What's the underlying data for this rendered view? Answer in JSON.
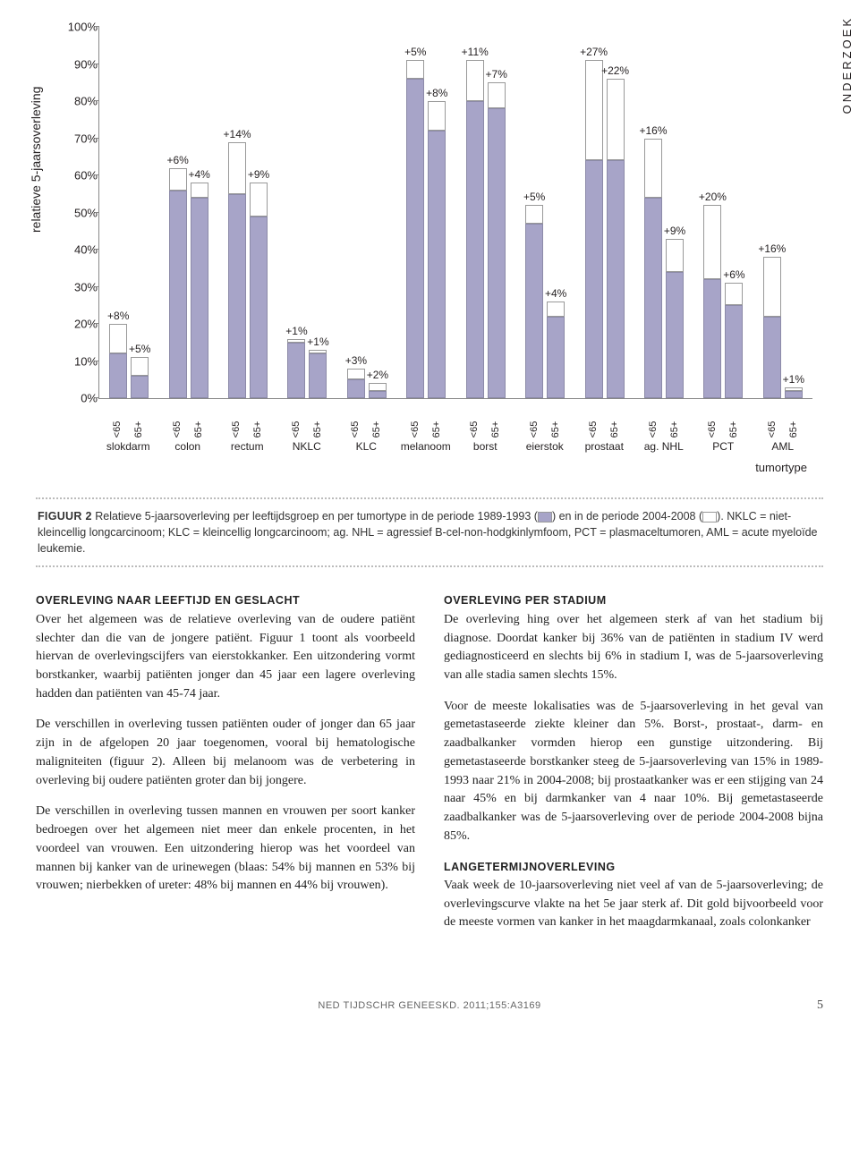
{
  "sidetab": "ONDERZOEK",
  "chart": {
    "type": "bar",
    "ylabel": "relatieve 5-jaarsoverleving",
    "ylim": [
      0,
      100
    ],
    "ytick_step": 10,
    "bar_fill": "#a7a4c8",
    "bar_stroke": "#8c8aa8",
    "outline_fill": "#ffffff",
    "outline_stroke": "#999999",
    "xaxis_caption": "tumortype",
    "sublabels": [
      "<65",
      "65+"
    ],
    "groups": [
      {
        "name": "slokdarm",
        "bars": [
          {
            "old": 12,
            "delta": 8
          },
          {
            "old": 6,
            "delta": 5
          }
        ]
      },
      {
        "name": "colon",
        "bars": [
          {
            "old": 56,
            "delta": 6
          },
          {
            "old": 54,
            "delta": 4
          }
        ]
      },
      {
        "name": "rectum",
        "bars": [
          {
            "old": 55,
            "delta": 14
          },
          {
            "old": 49,
            "delta": 9
          }
        ]
      },
      {
        "name": "NKLC",
        "bars": [
          {
            "old": 15,
            "delta": 1
          },
          {
            "old": 12,
            "delta": 1
          }
        ]
      },
      {
        "name": "KLC",
        "bars": [
          {
            "old": 5,
            "delta": 3
          },
          {
            "old": 2,
            "delta": 2
          }
        ]
      },
      {
        "name": "melanoom",
        "bars": [
          {
            "old": 86,
            "delta": 5
          },
          {
            "old": 72,
            "delta": 8
          }
        ]
      },
      {
        "name": "borst",
        "bars": [
          {
            "old": 80,
            "delta": 11
          },
          {
            "old": 78,
            "delta": 7
          }
        ]
      },
      {
        "name": "eierstok",
        "bars": [
          {
            "old": 47,
            "delta": 5
          },
          {
            "old": 22,
            "delta": 4
          }
        ]
      },
      {
        "name": "prostaat",
        "bars": [
          {
            "old": 64,
            "delta": 27
          },
          {
            "old": 64,
            "delta": 22
          }
        ]
      },
      {
        "name": "ag. NHL",
        "bars": [
          {
            "old": 54,
            "delta": 16
          },
          {
            "old": 34,
            "delta": 9
          }
        ]
      },
      {
        "name": "PCT",
        "bars": [
          {
            "old": 32,
            "delta": 20
          },
          {
            "old": 25,
            "delta": 6
          }
        ]
      },
      {
        "name": "AML",
        "bars": [
          {
            "old": 22,
            "delta": 16
          },
          {
            "old": 2,
            "delta": 1
          }
        ]
      }
    ]
  },
  "caption": {
    "lead": "FIGUUR 2",
    "text1": " Relatieve 5-jaarsoverleving per leeftijdsgroep en per tumortype in de periode 1989-1993 (",
    "text2": ") en in de periode 2004-2008 (",
    "text3": "). NKLC = niet-kleincellig longcarcinoom; KLC = kleincellig longcarcinoom; ag. NHL = agressief B-cel-non-hodgkinlymfoom, PCT = plasmaceltumoren, AML = acute myeloïde leukemie."
  },
  "article": {
    "h1": "OVERLEVING NAAR LEEFTIJD EN GESLACHT",
    "p1": "Over het algemeen was de relatieve overleving van de oudere patiënt slechter dan die van de jongere patiënt. Figuur 1 toont als voorbeeld hiervan de overlevingscijfers van eierstokkanker. Een uitzondering vormt borstkanker, waarbij patiënten jonger dan 45 jaar een lagere overleving hadden dan patiënten van 45-74 jaar.",
    "p2": "De verschillen in overleving tussen patiënten ouder of jonger dan 65 jaar zijn in de afgelopen 20 jaar toegenomen, vooral bij hematologische maligniteiten (figuur 2). Alleen bij melanoom was de verbetering in overleving bij oudere patiënten groter dan bij jongere.",
    "p3": "De verschillen in overleving tussen mannen en vrouwen per soort kanker bedroegen over het algemeen niet meer dan enkele procenten, in het voordeel van vrouwen. Een uitzondering hierop was het voordeel van mannen bij kanker van de urinewegen (blaas: 54% bij mannen en 53% bij vrouwen; nierbekken of ureter: 48% bij mannen en 44% bij vrouwen).",
    "h2": "OVERLEVING PER STADIUM",
    "p4": "De overleving hing over het algemeen sterk af van het stadium bij diagnose. Doordat kanker bij 36% van de patiënten in stadium IV werd gediagnosticeerd en slechts bij 6% in stadium I, was de 5-jaarsoverleving van alle stadia samen slechts 15%.",
    "p5": "Voor de meeste lokalisaties was de 5-jaarsoverleving in het geval van gemetastaseerde ziekte kleiner dan 5%. Borst-, prostaat-, darm- en zaadbalkanker vormden hierop een gunstige uitzondering. Bij gemetastaseerde borstkanker steeg de 5-jaarsoverleving van 15% in 1989-1993 naar 21% in 2004-2008; bij prostaatkanker was er een stijging van 24 naar 45% en bij darmkanker van 4 naar 10%. Bij gemetastaseerde zaadbalkanker was de 5-jaarsoverleving over de periode 2004-2008 bijna 85%.",
    "h3": "LANGETERMIJNOVERLEVING",
    "p6": "Vaak week de 10-jaarsoverleving niet veel af van de 5-jaarsoverleving; de overlevingscurve vlakte na het 5e jaar sterk af. Dit gold bijvoorbeeld voor de meeste vormen van kanker in het maagdarmkanaal, zoals colonkanker"
  },
  "footer": {
    "src": "NED TIJDSCHR GENEESKD. 2011;155:A3169",
    "page": "5"
  }
}
